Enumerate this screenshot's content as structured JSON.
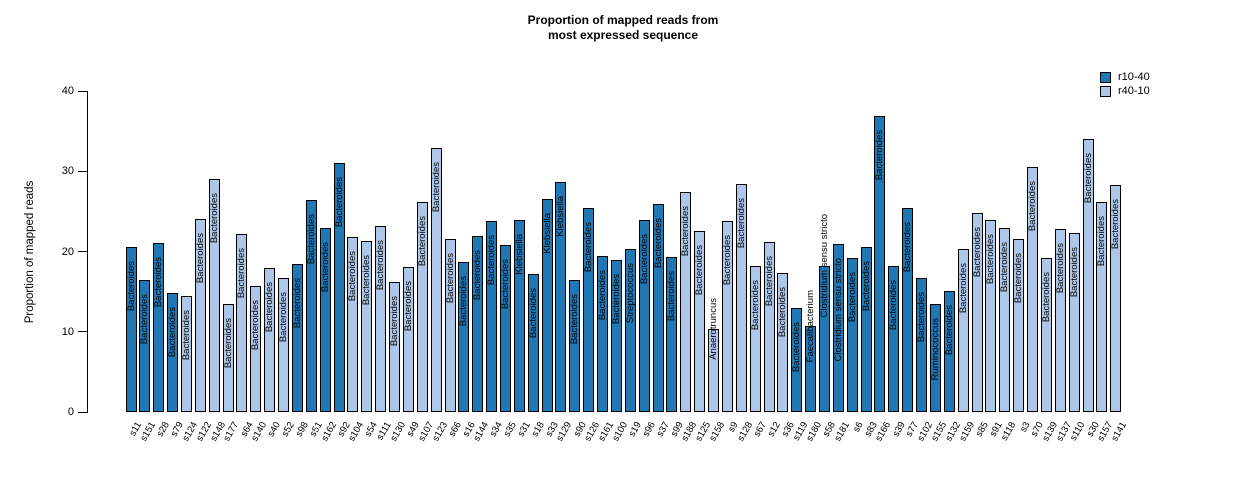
{
  "title": {
    "line1": "Proportion of mapped reads from",
    "line2": "most expressed sequence"
  },
  "y_axis": {
    "label": "Proportion of mapped reads",
    "ticks": [
      0,
      10,
      20,
      30,
      40
    ]
  },
  "legend": {
    "items": [
      {
        "label": "r10-40",
        "color": "#1f77b4"
      },
      {
        "label": "r40-10",
        "color": "#aec7e8"
      }
    ]
  },
  "chart_data": {
    "type": "bar",
    "title": "Proportion of mapped reads from\nmost expressed sequence",
    "xlabel": "",
    "ylabel": "Proportion of mapped reads",
    "ylim": [
      0,
      40
    ],
    "yticks": [
      0,
      10,
      20,
      30,
      40
    ],
    "grid": false,
    "legend_position": "top-right",
    "groups": {
      "r10-40": "#1f77b4",
      "r40-10": "#aec7e8"
    },
    "bar_value_unit": "percent of mapped reads",
    "bars": [
      {
        "sample": "s11",
        "value": 20.6,
        "group": "r10-40",
        "genus": "Bacteroides"
      },
      {
        "sample": "s151",
        "value": 16.5,
        "group": "r10-40",
        "genus": "Bacteroides"
      },
      {
        "sample": "s28",
        "value": 21.1,
        "group": "r10-40",
        "genus": "Bacteroides"
      },
      {
        "sample": "s79",
        "value": 14.8,
        "group": "r10-40",
        "genus": "Bacteroides"
      },
      {
        "sample": "s124",
        "value": 14.5,
        "group": "r40-10",
        "genus": "Bacteroides"
      },
      {
        "sample": "s122",
        "value": 24.1,
        "group": "r40-10",
        "genus": "Bacteroides"
      },
      {
        "sample": "s148",
        "value": 29.0,
        "group": "r40-10",
        "genus": "Bacteroides"
      },
      {
        "sample": "s177",
        "value": 13.5,
        "group": "r40-10",
        "genus": "Bacteroides"
      },
      {
        "sample": "s64",
        "value": 22.2,
        "group": "r40-10",
        "genus": "Bacteroides"
      },
      {
        "sample": "s140",
        "value": 15.7,
        "group": "r40-10",
        "genus": "Bacteroides"
      },
      {
        "sample": "s40",
        "value": 18.0,
        "group": "r40-10",
        "genus": "Bacteroides"
      },
      {
        "sample": "s52",
        "value": 16.7,
        "group": "r40-10",
        "genus": "Bacteroides"
      },
      {
        "sample": "s98",
        "value": 18.4,
        "group": "r10-40",
        "genus": "Bacteroides"
      },
      {
        "sample": "s51",
        "value": 26.4,
        "group": "r10-40",
        "genus": "Bacteroides"
      },
      {
        "sample": "s162",
        "value": 22.9,
        "group": "r10-40",
        "genus": "Bacteroides"
      },
      {
        "sample": "s92",
        "value": 31.0,
        "group": "r10-40",
        "genus": "Bacteroides"
      },
      {
        "sample": "s104",
        "value": 21.8,
        "group": "r40-10",
        "genus": "Bacteroides"
      },
      {
        "sample": "s54",
        "value": 21.3,
        "group": "r40-10",
        "genus": "Bacteroides"
      },
      {
        "sample": "s111",
        "value": 23.2,
        "group": "r40-10",
        "genus": "Bacteroides"
      },
      {
        "sample": "s130",
        "value": 16.2,
        "group": "r40-10",
        "genus": "Bacteroides"
      },
      {
        "sample": "s49",
        "value": 18.1,
        "group": "r40-10",
        "genus": "Bacteroides"
      },
      {
        "sample": "s107",
        "value": 26.2,
        "group": "r40-10",
        "genus": "Bacteroides"
      },
      {
        "sample": "s123",
        "value": 32.9,
        "group": "r40-10",
        "genus": "Bacteroides"
      },
      {
        "sample": "s66",
        "value": 21.6,
        "group": "r40-10",
        "genus": "Bacteroides"
      },
      {
        "sample": "s16",
        "value": 18.7,
        "group": "r10-40",
        "genus": "Bacteroides"
      },
      {
        "sample": "s144",
        "value": 21.9,
        "group": "r10-40",
        "genus": "Bacteroides"
      },
      {
        "sample": "s34",
        "value": 23.8,
        "group": "r10-40",
        "genus": "Bacteroides"
      },
      {
        "sample": "s35",
        "value": 20.8,
        "group": "r10-40",
        "genus": "Bacteroides"
      },
      {
        "sample": "s31",
        "value": 23.9,
        "group": "r10-40",
        "genus": "Klebsiella"
      },
      {
        "sample": "s18",
        "value": 17.2,
        "group": "r10-40",
        "genus": "Bacteroides"
      },
      {
        "sample": "s33",
        "value": 26.6,
        "group": "r10-40",
        "genus": "Klebsiella"
      },
      {
        "sample": "s129",
        "value": 28.6,
        "group": "r10-40",
        "genus": "Klebsiella"
      },
      {
        "sample": "s90",
        "value": 16.4,
        "group": "r10-40",
        "genus": "Bacteroides"
      },
      {
        "sample": "s126",
        "value": 25.4,
        "group": "r10-40",
        "genus": "Bacteroides"
      },
      {
        "sample": "s161",
        "value": 19.4,
        "group": "r10-40",
        "genus": "Bacteroides"
      },
      {
        "sample": "s100",
        "value": 18.9,
        "group": "r10-40",
        "genus": "Bacteroides"
      },
      {
        "sample": "s19",
        "value": 20.3,
        "group": "r10-40",
        "genus": "Streptococcus"
      },
      {
        "sample": "s96",
        "value": 23.9,
        "group": "r10-40",
        "genus": "Bacteroides"
      },
      {
        "sample": "s37",
        "value": 25.9,
        "group": "r10-40",
        "genus": "Bacteroides"
      },
      {
        "sample": "s99",
        "value": 19.3,
        "group": "r10-40",
        "genus": "Bacteroides"
      },
      {
        "sample": "s188",
        "value": 27.4,
        "group": "r40-10",
        "genus": "Bacteroides"
      },
      {
        "sample": "s125",
        "value": 22.5,
        "group": "r40-10",
        "genus": "Bacteroides"
      },
      {
        "sample": "s158",
        "value": 10.3,
        "group": "r40-10",
        "genus": "Anaerotruncus"
      },
      {
        "sample": "s9",
        "value": 23.8,
        "group": "r40-10",
        "genus": "Bacteroides"
      },
      {
        "sample": "s128",
        "value": 28.4,
        "group": "r40-10",
        "genus": "Bacteroides"
      },
      {
        "sample": "s67",
        "value": 18.2,
        "group": "r40-10",
        "genus": "Bacteroides"
      },
      {
        "sample": "s12",
        "value": 21.2,
        "group": "r40-10",
        "genus": "Bacteroides"
      },
      {
        "sample": "s36",
        "value": 17.3,
        "group": "r40-10",
        "genus": "Bacteroides"
      },
      {
        "sample": "s119",
        "value": 13.0,
        "group": "r10-40",
        "genus": "Bacteroides"
      },
      {
        "sample": "s180",
        "value": 10.7,
        "group": "r10-40",
        "genus": "Faecalibacterium"
      },
      {
        "sample": "s58",
        "value": 18.2,
        "group": "r10-40",
        "genus": "Clostridium sensu stricto"
      },
      {
        "sample": "s181",
        "value": 20.9,
        "group": "r10-40",
        "genus": "Clostridium sensu stricto"
      },
      {
        "sample": "s6",
        "value": 19.2,
        "group": "r10-40",
        "genus": "Bacteroides"
      },
      {
        "sample": "s83",
        "value": 20.6,
        "group": "r10-40",
        "genus": "Bacteroides"
      },
      {
        "sample": "s166",
        "value": 36.9,
        "group": "r10-40",
        "genus": "Bacteroides"
      },
      {
        "sample": "s39",
        "value": 18.2,
        "group": "r10-40",
        "genus": "Bacteroides"
      },
      {
        "sample": "s77",
        "value": 25.4,
        "group": "r10-40",
        "genus": "Bacteroides"
      },
      {
        "sample": "s102",
        "value": 16.7,
        "group": "r10-40",
        "genus": "Bacteroides"
      },
      {
        "sample": "s155",
        "value": 13.5,
        "group": "r10-40",
        "genus": "Ruminococcus"
      },
      {
        "sample": "s132",
        "value": 15.1,
        "group": "r10-40",
        "genus": "Bacteroides"
      },
      {
        "sample": "s159",
        "value": 20.3,
        "group": "r40-10",
        "genus": "Bacteroides"
      },
      {
        "sample": "s85",
        "value": 24.8,
        "group": "r40-10",
        "genus": "Bacteroides"
      },
      {
        "sample": "s91",
        "value": 23.9,
        "group": "r40-10",
        "genus": "Bacteroides"
      },
      {
        "sample": "s118",
        "value": 22.9,
        "group": "r40-10",
        "genus": "Bacteroides"
      },
      {
        "sample": "s3",
        "value": 21.6,
        "group": "r40-10",
        "genus": "Bacteroides"
      },
      {
        "sample": "s70",
        "value": 30.5,
        "group": "r40-10",
        "genus": "Bacteroides"
      },
      {
        "sample": "s139",
        "value": 19.2,
        "group": "r40-10",
        "genus": "Bacteroides"
      },
      {
        "sample": "s137",
        "value": 22.8,
        "group": "r40-10",
        "genus": "Bacteroides"
      },
      {
        "sample": "s110",
        "value": 22.3,
        "group": "r40-10",
        "genus": "Bacteroides"
      },
      {
        "sample": "s30",
        "value": 34.0,
        "group": "r40-10",
        "genus": "Bacteroides"
      },
      {
        "sample": "s157",
        "value": 26.2,
        "group": "r40-10",
        "genus": "Bacteroides"
      },
      {
        "sample": "s141",
        "value": 28.3,
        "group": "r40-10",
        "genus": "Bacteroides"
      }
    ]
  }
}
